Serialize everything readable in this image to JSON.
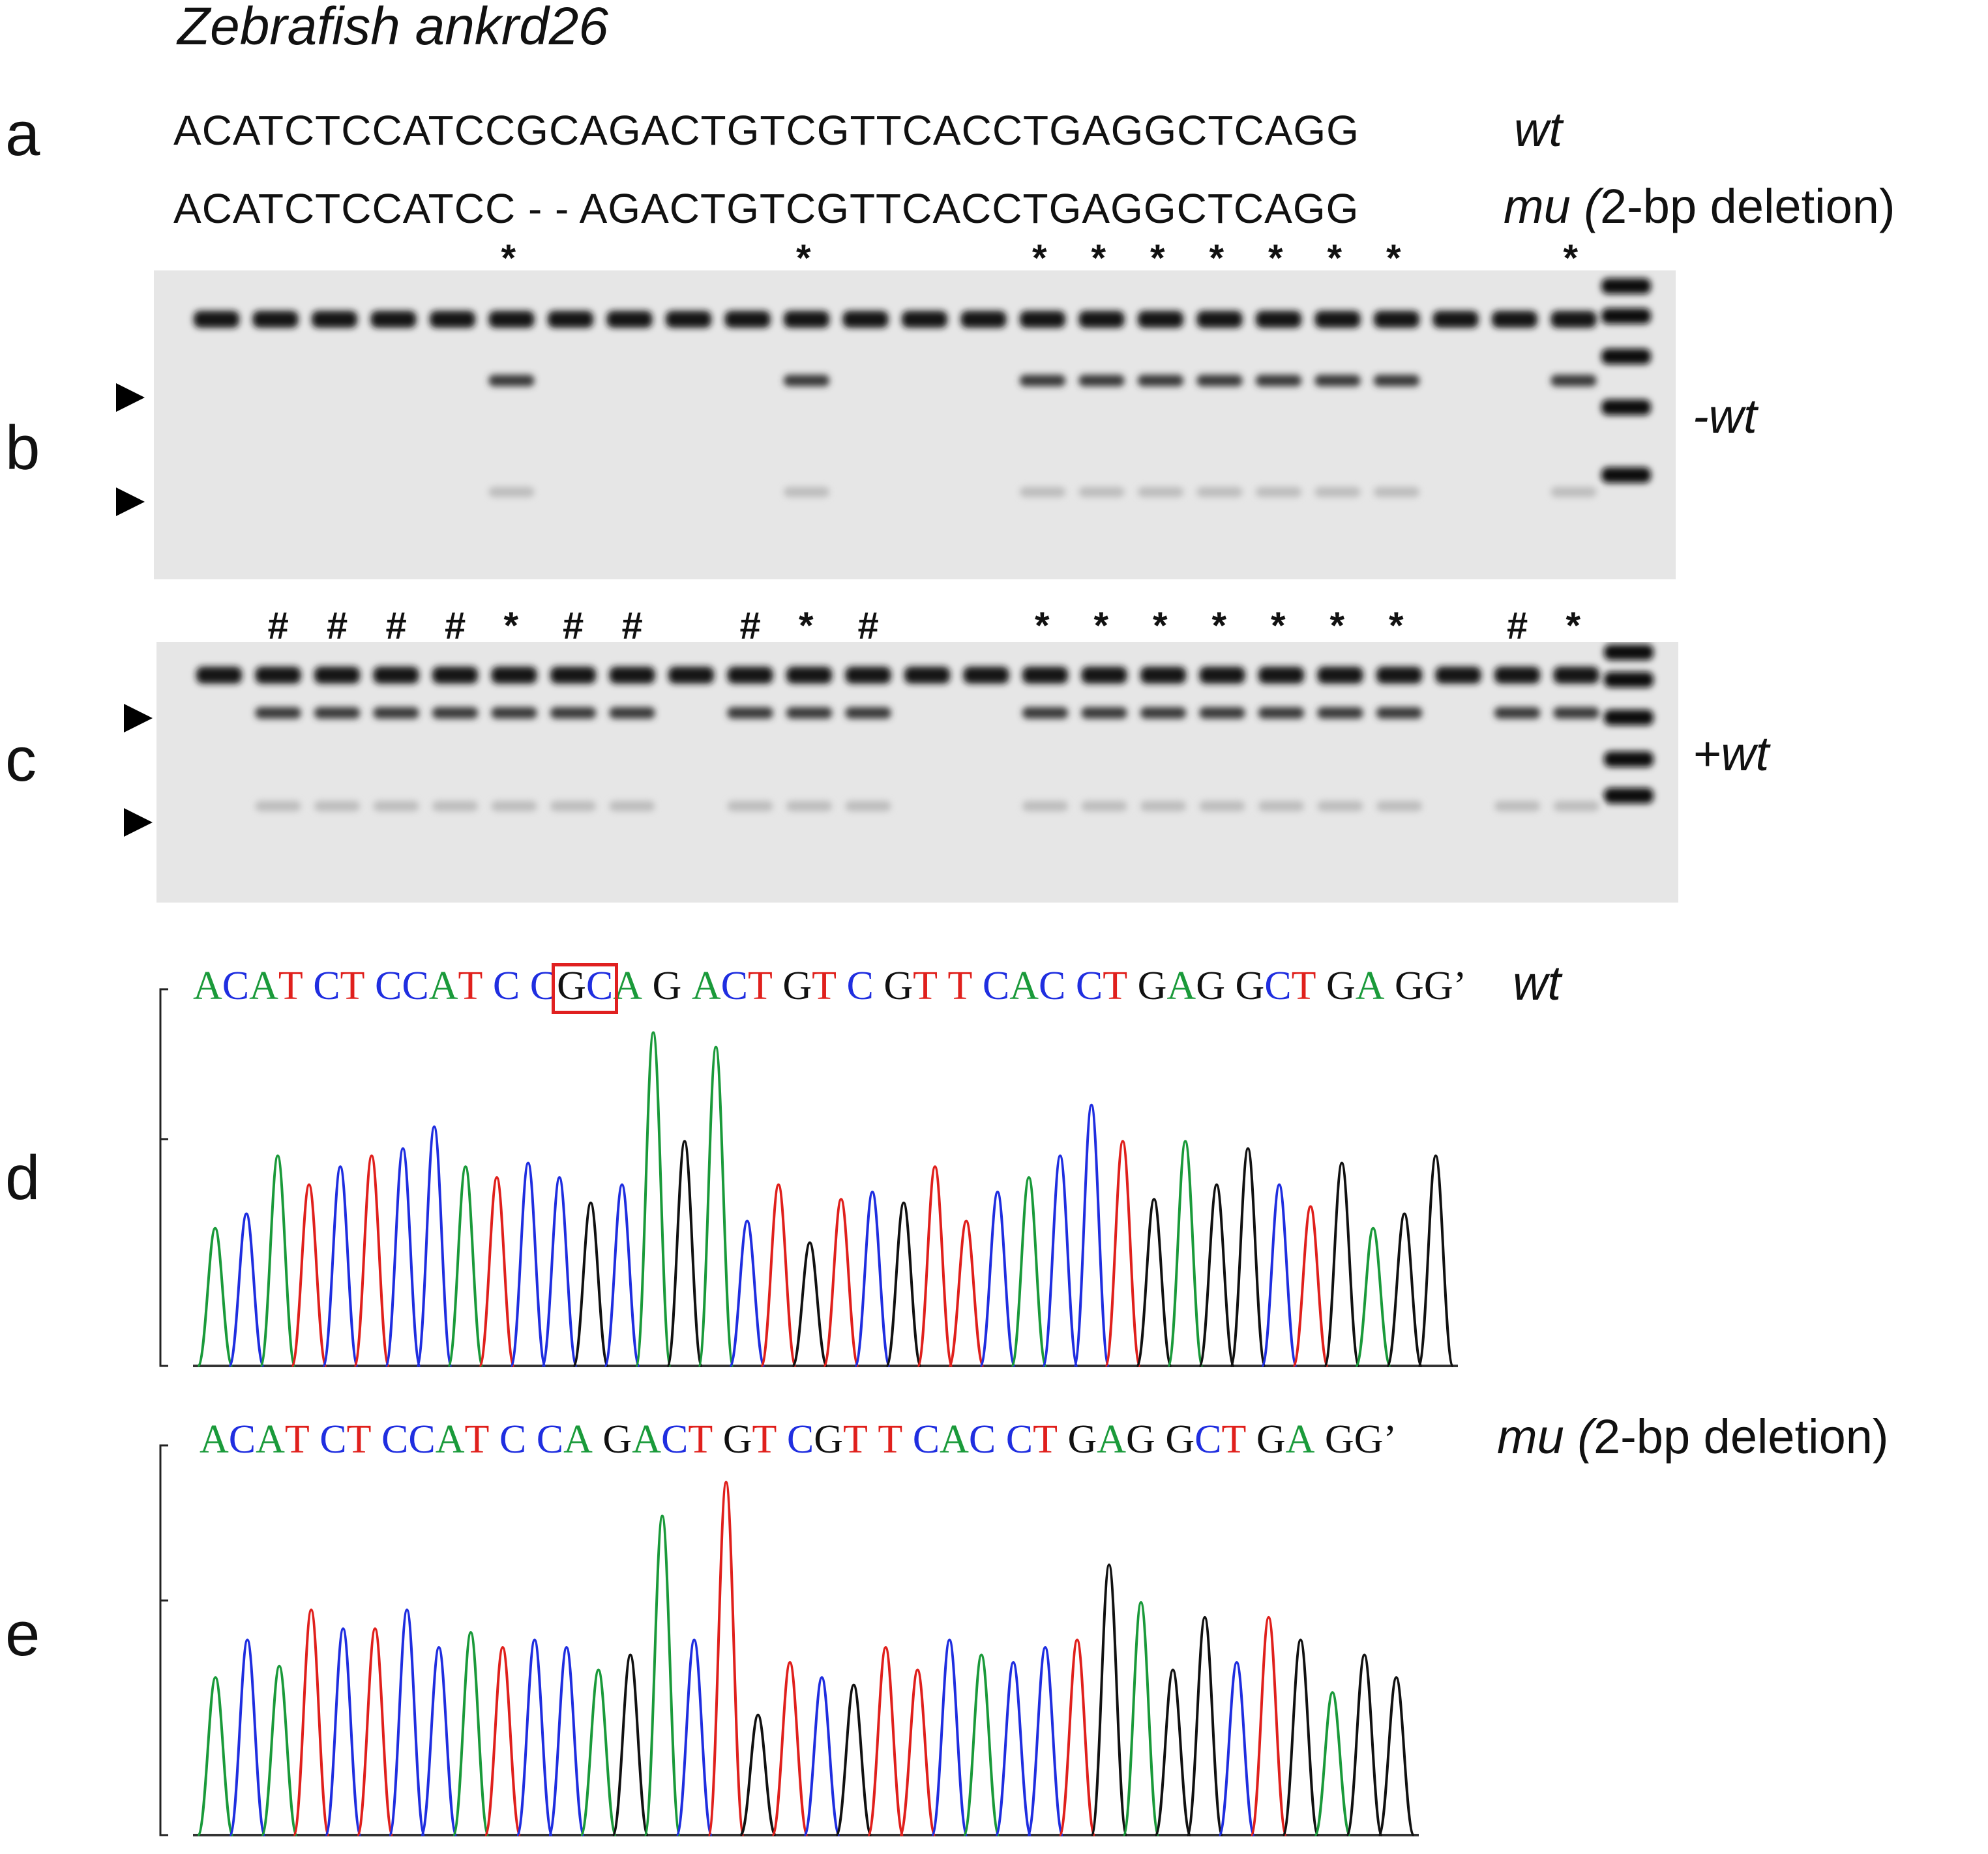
{
  "title": "Zebrafish ankrd26",
  "panels": {
    "a": {
      "label": "a",
      "wt_sequence": "ACATCTCCATCCGCAGACTGTCGTTCACCTGAGGCTCAGG",
      "mu_sequence": "ACATCTCCATCC - - AGACTGTCGTTCACCTGAGGCTCAGG",
      "wt_label": "wt",
      "mu_label_italic": "mu (",
      "mu_label_rest": "2-bp deletion)"
    },
    "b": {
      "label": "b",
      "side_label": "-wt",
      "marks": [
        "",
        "",
        "",
        "",
        "",
        "*",
        "",
        "",
        "",
        "",
        "*",
        "",
        "",
        "",
        "*",
        "*",
        "*",
        "*",
        "*",
        "*",
        "*",
        "",
        "",
        "*"
      ]
    },
    "c": {
      "label": "c",
      "side_label": "+wt",
      "marks": [
        "",
        "#",
        "#",
        "#",
        "#",
        "*",
        "#",
        "#",
        "",
        "#",
        "*",
        "#",
        "",
        "",
        "*",
        "*",
        "*",
        "*",
        "*",
        "*",
        "*",
        "",
        "#",
        "*"
      ]
    },
    "d": {
      "label": "d",
      "genotype": "wt",
      "basecalls": [
        "A",
        "C",
        "A",
        "T",
        " ",
        "C",
        "T",
        " ",
        "C",
        "C",
        "A",
        "T",
        " ",
        "C",
        " ",
        "C",
        "G",
        "C",
        "A",
        " ",
        "G",
        " ",
        "A",
        "C",
        "T",
        " ",
        "G",
        "T",
        " ",
        "C",
        " ",
        "G",
        "T",
        " ",
        "T",
        " ",
        "C",
        "A",
        "C",
        " ",
        "C",
        "T",
        " ",
        "G",
        "A",
        "G",
        " ",
        "G",
        "C",
        "T",
        " ",
        "G",
        "A",
        " ",
        "G",
        "G",
        "’"
      ],
      "highlight": "GC"
    },
    "e": {
      "label": "e",
      "genotype_italic": "mu (",
      "genotype_rest": "2-bp deletion)",
      "basecalls": [
        "A",
        "C",
        "A",
        "T",
        " ",
        "C",
        "T",
        " ",
        "C",
        "C",
        "A",
        "T",
        " ",
        "C",
        " ",
        "C",
        "A",
        " ",
        "G",
        "A",
        "C",
        "T",
        " ",
        "G",
        "T",
        " ",
        "C",
        "G",
        "T",
        " ",
        "T",
        " ",
        "C",
        "A",
        "C",
        " ",
        "C",
        "T",
        " ",
        "G",
        "A",
        "G",
        " ",
        "G",
        "C",
        "T",
        " ",
        "G",
        "A",
        " ",
        "G",
        "G",
        "’"
      ]
    }
  },
  "colors": {
    "A": "#1a9a3a",
    "C": "#1f2ee0",
    "G": "#111111",
    "T": "#e0201c",
    "highlight_box": "#e02020"
  }
}
